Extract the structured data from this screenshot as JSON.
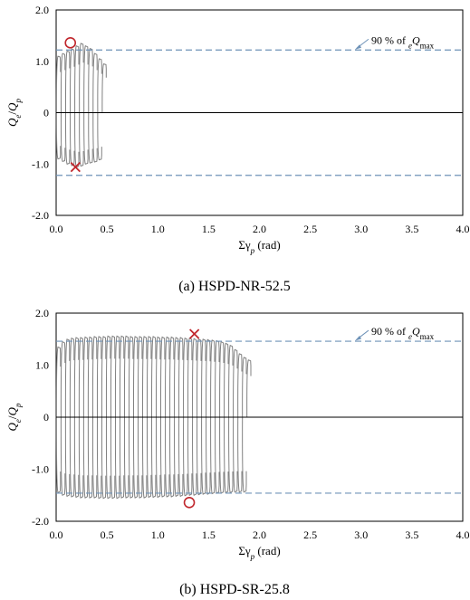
{
  "chart_data": [
    {
      "type": "line",
      "caption": "(a) HSPD-NR-52.5",
      "xlabel_sym": "Σγ",
      "xlabel_sub": "p",
      "xlabel_unit": " (rad)",
      "ylabel_q1": "Q",
      "ylabel_sub1": "e",
      "ylabel_q2": "Q",
      "ylabel_sub2": "p",
      "xlim": [
        0,
        4.0
      ],
      "ylim": [
        -2.0,
        2.0
      ],
      "xticks": [
        "0.0",
        "0.5",
        "1.0",
        "1.5",
        "2.0",
        "2.5",
        "3.0",
        "3.5",
        "4.0"
      ],
      "yticks": [
        "2.0",
        "1.0",
        "0",
        "-1.0",
        "-2.0"
      ],
      "threshold": 1.22,
      "annotation": {
        "prefix": "90 % of ",
        "sub": "e",
        "q": "Q",
        "max": "max"
      },
      "circle_marker": {
        "x": 0.14,
        "y": 1.36
      },
      "cross_marker": {
        "x": 0.19,
        "y": -1.06
      },
      "pos_peaks": [
        1.1,
        1.15,
        1.2,
        1.24,
        1.3,
        1.35,
        1.3,
        1.25,
        1.15,
        1.05,
        0.95
      ],
      "neg_peaks": [
        -0.9,
        -0.95,
        -1.0,
        -1.03,
        -1.06,
        -1.04,
        -1.0,
        -0.98,
        -0.96,
        -0.92
      ],
      "cycle_width": 0.045
    },
    {
      "type": "line",
      "caption": "(b) HSPD-SR-25.8",
      "xlabel_sym": "Σγ",
      "xlabel_sub": "p",
      "xlabel_unit": " (rad)",
      "ylabel_q1": "Q",
      "ylabel_sub1": "e",
      "ylabel_q2": "Q",
      "ylabel_sub2": "p",
      "xlim": [
        0,
        4.0
      ],
      "ylim": [
        -2.0,
        2.0
      ],
      "xticks": [
        "0.0",
        "0.5",
        "1.0",
        "1.5",
        "2.0",
        "2.5",
        "3.0",
        "3.5",
        "4.0"
      ],
      "yticks": [
        "2.0",
        "1.0",
        "0",
        "-1.0",
        "-2.0"
      ],
      "threshold": 1.46,
      "annotation": {
        "prefix": "90 % of ",
        "sub": "e",
        "q": "Q",
        "max": "max"
      },
      "circle_marker": {
        "x": 1.31,
        "y": -1.64
      },
      "cross_marker": {
        "x": 1.36,
        "y": 1.6
      },
      "pos_peaks": [
        1.35,
        1.45,
        1.5,
        1.52,
        1.53,
        1.53,
        1.54,
        1.54,
        1.55,
        1.55,
        1.55,
        1.56,
        1.56,
        1.56,
        1.56,
        1.56,
        1.55,
        1.55,
        1.55,
        1.55,
        1.55,
        1.55,
        1.54,
        1.54,
        1.54,
        1.54,
        1.53,
        1.53,
        1.52,
        1.52,
        1.51,
        1.5,
        1.5,
        1.49,
        1.48,
        1.47,
        1.45,
        1.42,
        1.38,
        1.3,
        1.22,
        1.15,
        1.1
      ],
      "neg_peaks": [
        -1.45,
        -1.5,
        -1.52,
        -1.53,
        -1.54,
        -1.55,
        -1.55,
        -1.55,
        -1.55,
        -1.56,
        -1.56,
        -1.56,
        -1.56,
        -1.56,
        -1.55,
        -1.55,
        -1.55,
        -1.55,
        -1.55,
        -1.55,
        -1.54,
        -1.54,
        -1.54,
        -1.53,
        -1.53,
        -1.53,
        -1.52,
        -1.52,
        -1.51,
        -1.5,
        -1.5,
        -1.49,
        -1.48,
        -1.48,
        -1.47,
        -1.46,
        -1.46,
        -1.45,
        -1.45,
        -1.44,
        -1.44,
        -1.44
      ],
      "cycle_width": 0.0446
    }
  ],
  "colors": {
    "curve": "#808080",
    "threshold": "#6f93b8",
    "marker": "#c0262c",
    "axis": "#000000"
  }
}
